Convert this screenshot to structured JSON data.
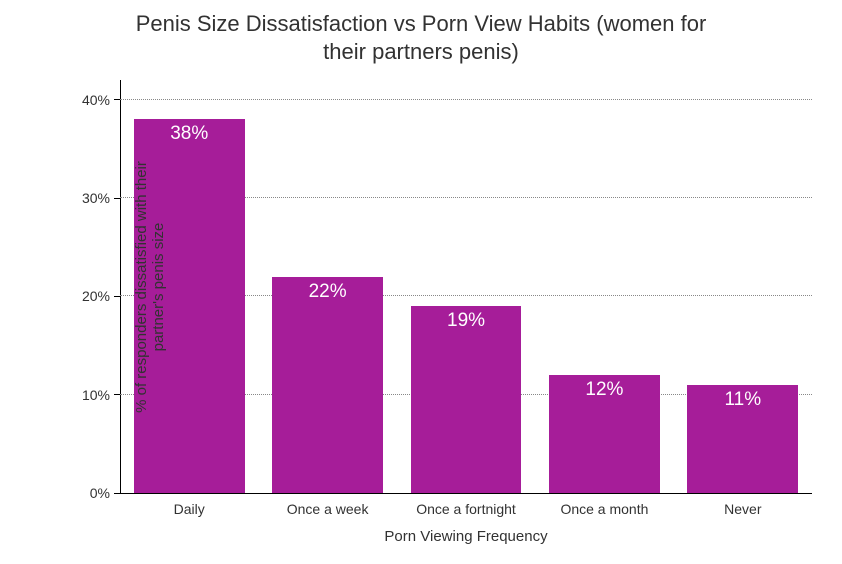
{
  "chart": {
    "type": "bar",
    "title_line1": "Penis Size Dissatisfaction vs Porn View Habits (women for",
    "title_line2": "their partners penis)",
    "title_fontsize": 22,
    "title_color": "#323232",
    "x_axis_title": "Porn Viewing Frequency",
    "y_axis_title": "% of responders dissatisfied with their\npartner's penis size",
    "axis_title_fontsize": 15,
    "categories": [
      "Daily",
      "Once a week",
      "Once a fortnight",
      "Once a month",
      "Never"
    ],
    "values": [
      38,
      22,
      19,
      12,
      11
    ],
    "value_labels": [
      "38%",
      "22%",
      "19%",
      "12%",
      "11%"
    ],
    "bar_color": "#a61d99",
    "bar_label_color": "#ffffff",
    "bar_label_fontsize": 19,
    "bar_width_pct": 80,
    "ylim_min": 0,
    "ylim_max": 42,
    "ytick_positions": [
      0,
      10,
      20,
      30,
      40
    ],
    "ytick_labels": [
      "0%",
      "10%",
      "20%",
      "30%",
      "40%"
    ],
    "tick_label_fontsize": 14,
    "tick_label_color": "#323232",
    "xtick_label_fontsize": 14,
    "background_color": "#ffffff",
    "grid_color": "#888888",
    "grid_style": "dotted",
    "axis_line_color": "#000000"
  }
}
